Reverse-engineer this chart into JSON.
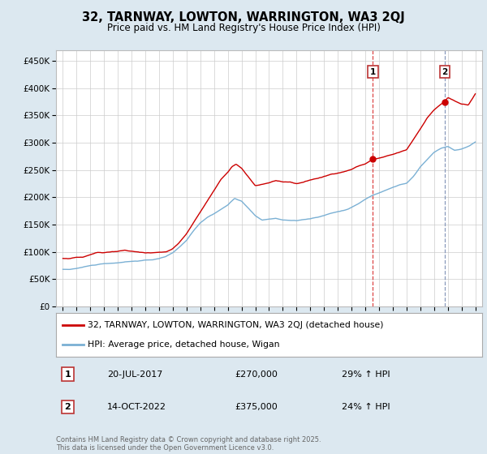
{
  "title": "32, TARNWAY, LOWTON, WARRINGTON, WA3 2QJ",
  "subtitle": "Price paid vs. HM Land Registry's House Price Index (HPI)",
  "ylabel_ticks": [
    "£0",
    "£50K",
    "£100K",
    "£150K",
    "£200K",
    "£250K",
    "£300K",
    "£350K",
    "£400K",
    "£450K"
  ],
  "ytick_values": [
    0,
    50000,
    100000,
    150000,
    200000,
    250000,
    300000,
    350000,
    400000,
    450000
  ],
  "ylim": [
    0,
    470000
  ],
  "xlim_start": 1994.5,
  "xlim_end": 2025.5,
  "red_line_color": "#cc0000",
  "blue_line_color": "#7ab0d4",
  "marker1_date": 2017.55,
  "marker1_value": 270000,
  "marker2_date": 2022.79,
  "marker2_value": 375000,
  "vline1_color": "#dd4444",
  "vline2_color": "#8899bb",
  "legend_label1": "32, TARNWAY, LOWTON, WARRINGTON, WA3 2QJ (detached house)",
  "legend_label2": "HPI: Average price, detached house, Wigan",
  "annotation1_num": "1",
  "annotation1_date": "20-JUL-2017",
  "annotation1_price": "£270,000",
  "annotation1_hpi": "29% ↑ HPI",
  "annotation2_num": "2",
  "annotation2_date": "14-OCT-2022",
  "annotation2_price": "£375,000",
  "annotation2_hpi": "24% ↑ HPI",
  "footer": "Contains HM Land Registry data © Crown copyright and database right 2025.\nThis data is licensed under the Open Government Licence v3.0.",
  "background_color": "#dce8f0",
  "plot_bg_color": "#ffffff",
  "title_fontsize": 11,
  "subtitle_fontsize": 9,
  "tick_fontsize": 7.5,
  "xtick_years": [
    1995,
    1996,
    1997,
    1998,
    1999,
    2000,
    2001,
    2002,
    2003,
    2004,
    2005,
    2006,
    2007,
    2008,
    2009,
    2010,
    2011,
    2012,
    2013,
    2014,
    2015,
    2016,
    2017,
    2018,
    2019,
    2020,
    2021,
    2022,
    2023,
    2024,
    2025
  ]
}
